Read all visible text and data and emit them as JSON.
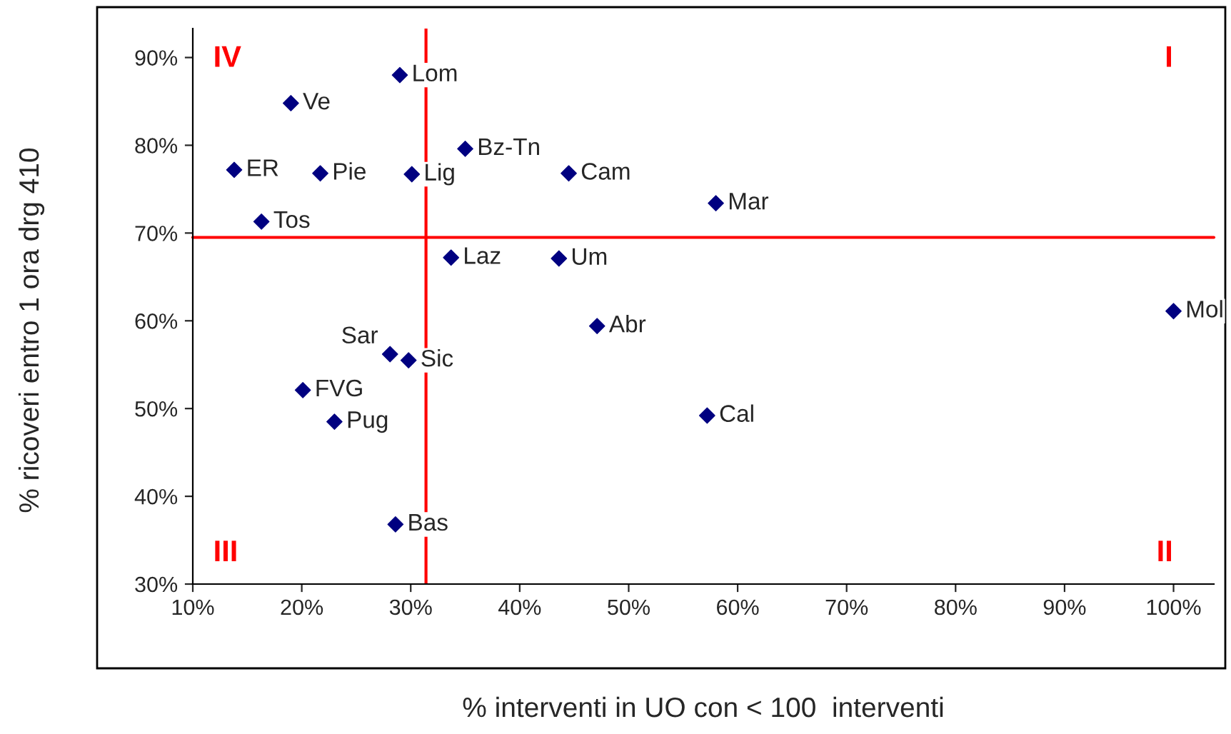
{
  "chart_data": {
    "type": "scatter",
    "xlabel": "% interventi in UO con < 100  interventi",
    "ylabel": "% ricoveri entro 1 ora drg 410",
    "x": [
      29.0,
      19.0,
      35.0,
      13.8,
      21.7,
      30.1,
      44.5,
      58.0,
      16.3,
      33.7,
      43.6,
      47.1,
      100,
      28.1,
      29.8,
      20.1,
      23.0,
      57.2,
      28.6
    ],
    "series": [
      {
        "color": "#000080",
        "values": [
          88.0,
          84.8,
          79.6,
          77.2,
          76.8,
          76.7,
          76.8,
          73.4,
          71.3,
          67.2,
          67.1,
          59.4,
          61.1,
          56.2,
          55.5,
          52.1,
          48.5,
          49.2,
          36.8
        ]
      }
    ],
    "marker": "diamond",
    "xlim": [
      10,
      103.7
    ],
    "ylim": [
      30,
      93.3
    ],
    "xticks": [
      {
        "value": 10,
        "label": "10%"
      },
      {
        "value": 20,
        "label": "20%"
      },
      {
        "value": 30,
        "label": "30%"
      },
      {
        "value": 40,
        "label": "40%"
      },
      {
        "value": 50,
        "label": "50%"
      },
      {
        "value": 60,
        "label": "60%"
      },
      {
        "value": 70,
        "label": "70%"
      },
      {
        "value": 80,
        "label": "80%"
      },
      {
        "value": 90,
        "label": "90%"
      },
      {
        "value": 100,
        "label": "100%"
      }
    ],
    "yticks": [
      {
        "value": 30,
        "label": "30%"
      },
      {
        "value": 40,
        "label": "40%"
      },
      {
        "value": 50,
        "label": "50%"
      },
      {
        "value": 60,
        "label": "60%"
      },
      {
        "value": 70,
        "label": "70%"
      },
      {
        "value": 80,
        "label": "80%"
      },
      {
        "value": 90,
        "label": "90%"
      }
    ],
    "grid": false,
    "legend": false,
    "ref_lines": [
      {
        "axis": "x",
        "value": 31.4,
        "color": "#ff0000"
      },
      {
        "axis": "y",
        "value": 69.5,
        "color": "#ff0000"
      }
    ],
    "annotations": [
      "IV",
      "I",
      "III",
      "II",
      {
        "text": "Lom",
        "x": 29.0,
        "y": 88.0
      },
      {
        "text": "Ve",
        "x": 19.0,
        "y": 84.8
      },
      {
        "text": "Bz-Tn",
        "x": 35.0,
        "y": 79.6
      },
      {
        "text": "ER",
        "x": 13.8,
        "y": 77.2
      },
      {
        "text": "Pie",
        "x": 21.7,
        "y": 76.8
      },
      {
        "text": "Lig",
        "x": 30.1,
        "y": 76.7
      },
      {
        "text": "Cam",
        "x": 44.5,
        "y": 76.8
      },
      {
        "text": "Mar",
        "x": 58.0,
        "y": 73.4
      },
      {
        "text": "Tos",
        "x": 16.3,
        "y": 71.3
      },
      {
        "text": "Laz",
        "x": 33.7,
        "y": 67.2
      },
      {
        "text": "Um",
        "x": 43.6,
        "y": 67.1
      },
      {
        "text": "Abr",
        "x": 47.1,
        "y": 59.4
      },
      {
        "text": "Mol",
        "x": 100,
        "y": 61.1
      },
      {
        "text": "Sar",
        "x": 28.1,
        "y": 56.2
      },
      {
        "text": "Sic",
        "x": 29.8,
        "y": 55.5
      },
      {
        "text": "FVG",
        "x": 20.1,
        "y": 52.1
      },
      {
        "text": "Pug",
        "x": 23.0,
        "y": 48.5
      },
      {
        "text": "Cal",
        "x": 57.2,
        "y": 49.2
      },
      {
        "text": "Bas",
        "x": 28.6,
        "y": 36.8
      }
    ]
  }
}
